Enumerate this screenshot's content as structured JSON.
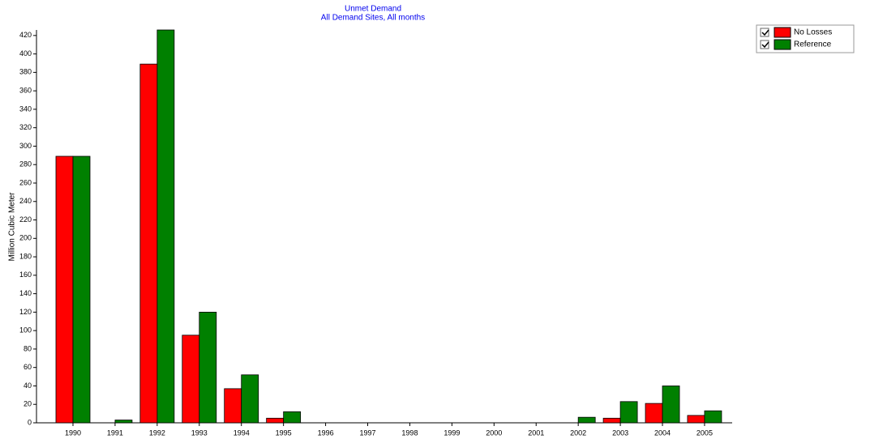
{
  "chart_data": {
    "type": "bar",
    "title": "Unmet Demand",
    "subtitle": "All Demand Sites,  All months",
    "y_label": "Million Cubic Meter",
    "categories": [
      "1990",
      "1991",
      "1992",
      "1993",
      "1994",
      "1995",
      "1996",
      "1997",
      "1998",
      "1999",
      "2000",
      "2001",
      "2002",
      "2003",
      "2004",
      "2005"
    ],
    "series": [
      {
        "name": "No Losses",
        "color": "#ff0000",
        "values": [
          289,
          0,
          389,
          95,
          37,
          5,
          0,
          0,
          0,
          0,
          0,
          0,
          0,
          5,
          21,
          8
        ]
      },
      {
        "name": "Reference",
        "color": "#008000",
        "values": [
          289,
          3,
          426,
          120,
          52,
          12,
          0,
          0,
          0,
          0,
          0,
          0,
          6,
          23,
          40,
          13
        ]
      }
    ],
    "ylim": [
      0,
      426
    ],
    "yticks": [
      0,
      20,
      40,
      60,
      80,
      100,
      120,
      140,
      160,
      180,
      200,
      220,
      240,
      260,
      280,
      300,
      320,
      340,
      360,
      380,
      400,
      420
    ],
    "grid": false,
    "legend": "top-right"
  }
}
